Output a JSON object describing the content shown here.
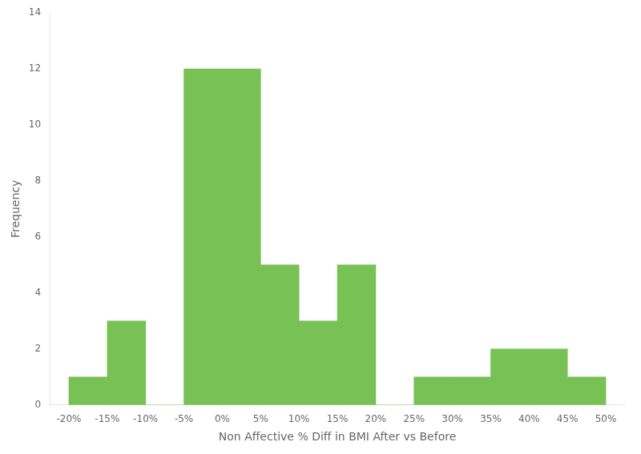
{
  "chart_data": {
    "type": "histogram",
    "xlabel": "Non Affective % Diff in BMI After vs Before",
    "ylabel": "Frequency",
    "bins": [
      -20,
      -15,
      -10,
      -5,
      0,
      5,
      10,
      15,
      20,
      25,
      30,
      35,
      40,
      45,
      50
    ],
    "values": [
      1,
      3,
      0,
      12,
      12,
      5,
      3,
      5,
      0,
      1,
      1,
      2,
      2,
      1
    ],
    "color": "#77C155",
    "xlim": [
      -22.5,
      52.5
    ],
    "xticks": [
      {
        "value": -20,
        "label": "-20%"
      },
      {
        "value": -15,
        "label": "-15%"
      },
      {
        "value": -10,
        "label": "-10%"
      },
      {
        "value": -5,
        "label": "-5%"
      },
      {
        "value": 0,
        "label": "0%"
      },
      {
        "value": 5,
        "label": "5%"
      },
      {
        "value": 10,
        "label": "10%"
      },
      {
        "value": 15,
        "label": "15%"
      },
      {
        "value": 20,
        "label": "20%"
      },
      {
        "value": 25,
        "label": "25%"
      },
      {
        "value": 30,
        "label": "30%"
      },
      {
        "value": 35,
        "label": "35%"
      },
      {
        "value": 40,
        "label": "40%"
      },
      {
        "value": 45,
        "label": "45%"
      },
      {
        "value": 50,
        "label": "50%"
      }
    ],
    "ylim": [
      0,
      14
    ],
    "yticks": [
      0,
      2,
      4,
      6,
      8,
      10,
      12,
      14
    ],
    "grid": false
  }
}
